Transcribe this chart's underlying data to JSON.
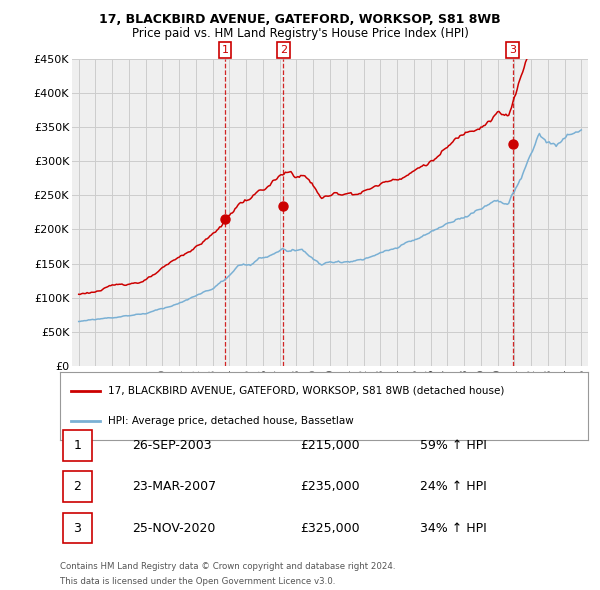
{
  "title": "17, BLACKBIRD AVENUE, GATEFORD, WORKSOP, S81 8WB",
  "subtitle": "Price paid vs. HM Land Registry's House Price Index (HPI)",
  "ylim": [
    0,
    450000
  ],
  "yticks": [
    0,
    50000,
    100000,
    150000,
    200000,
    250000,
    300000,
    350000,
    400000,
    450000
  ],
  "ytick_labels": [
    "£0",
    "£50K",
    "£100K",
    "£150K",
    "£200K",
    "£250K",
    "£300K",
    "£350K",
    "£400K",
    "£450K"
  ],
  "sale_dates": [
    2003.73,
    2007.22,
    2020.9
  ],
  "sale_prices": [
    215000,
    235000,
    325000
  ],
  "sale_labels": [
    "1",
    "2",
    "3"
  ],
  "sale_dates_str": [
    "26-SEP-2003",
    "23-MAR-2007",
    "25-NOV-2020"
  ],
  "sale_prices_str": [
    "£215,000",
    "£235,000",
    "£325,000"
  ],
  "sale_hpi_str": [
    "59% ↑ HPI",
    "24% ↑ HPI",
    "34% ↑ HPI"
  ],
  "legend_line1": "17, BLACKBIRD AVENUE, GATEFORD, WORKSOP, S81 8WB (detached house)",
  "legend_line2": "HPI: Average price, detached house, Bassetlaw",
  "footnote1": "Contains HM Land Registry data © Crown copyright and database right 2024.",
  "footnote2": "This data is licensed under the Open Government Licence v3.0.",
  "red_color": "#cc0000",
  "blue_color": "#7ab0d4",
  "grid_color": "#cccccc",
  "background_color": "#ffffff",
  "plot_bg_color": "#efefef",
  "title_fontsize": 9,
  "subtitle_fontsize": 8.5
}
